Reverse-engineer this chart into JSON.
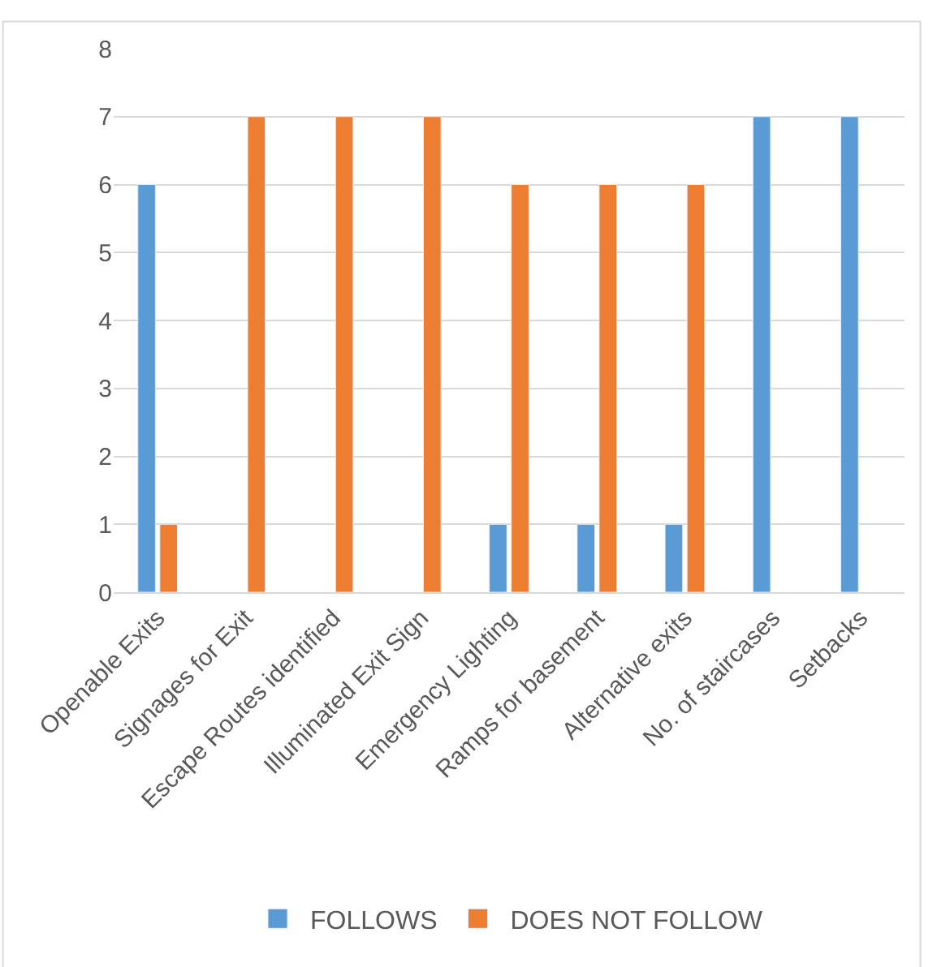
{
  "chart_data": {
    "type": "bar",
    "categories": [
      "Openable Exits",
      "Signages for Exit",
      "Escape Routes identified",
      "Illuminated Exit Sign",
      "Emergency Lighting",
      "Ramps for basement",
      "Alternative exits",
      "No. of staircases",
      "Setbacks"
    ],
    "series": [
      {
        "name": "FOLLOWS",
        "color": "#5b9bd5",
        "values": [
          6,
          null,
          null,
          null,
          1,
          1,
          1,
          7,
          7
        ]
      },
      {
        "name": "DOES NOT FOLLOW",
        "color": "#ed7d31",
        "values": [
          1,
          7,
          7,
          7,
          6,
          6,
          6,
          null,
          null
        ]
      }
    ],
    "ylim": [
      0,
      8
    ],
    "yticks": [
      0,
      1,
      2,
      3,
      4,
      5,
      6,
      7,
      8
    ],
    "grid": "y",
    "legend": "bottom"
  }
}
